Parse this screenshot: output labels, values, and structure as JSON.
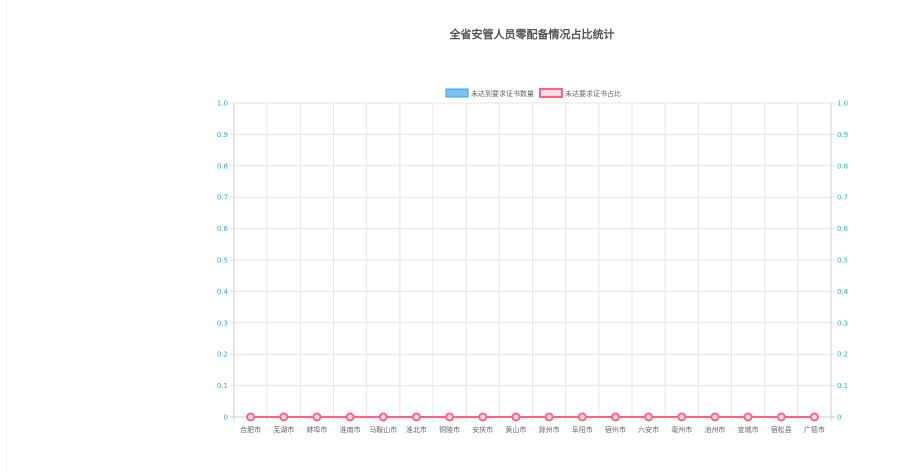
{
  "chart_data": {
    "type": "bar",
    "title": "全省安管人员零配备情况占比统计",
    "categories": [
      "合肥市",
      "芜湖市",
      "蚌埠市",
      "淮南市",
      "马鞍山市",
      "淮北市",
      "铜陵市",
      "安庆市",
      "黄山市",
      "滁州市",
      "阜阳市",
      "宿州市",
      "六安市",
      "亳州市",
      "池州市",
      "宣城市",
      "宿松县",
      "广德市"
    ],
    "series": [
      {
        "name": "未达到要求证书数量",
        "type": "bar",
        "color": "#36a2eb",
        "fill": "#7cc0f0",
        "values": [
          0,
          0,
          0,
          0,
          0,
          0,
          0,
          0,
          0,
          0,
          0,
          0,
          0,
          0,
          0,
          0,
          0,
          0
        ]
      },
      {
        "name": "未达要求证书占比",
        "type": "line",
        "color": "#ff6384",
        "fill": "#ffdde4",
        "values": [
          0,
          0,
          0,
          0,
          0,
          0,
          0,
          0,
          0,
          0,
          0,
          0,
          0,
          0,
          0,
          0,
          0,
          0
        ]
      }
    ],
    "ylim": [
      0,
      1.0
    ],
    "yticks": [
      "0",
      "0.1",
      "0.2",
      "0.3",
      "0.4",
      "0.5",
      "0.6",
      "0.7",
      "0.8",
      "0.9",
      "1.0"
    ],
    "y2lim": [
      0,
      1.0
    ],
    "y2ticks": [
      "0",
      "0.1",
      "0.2",
      "0.3",
      "0.4",
      "0.5",
      "0.6",
      "0.7",
      "0.8",
      "0.9",
      "1.0"
    ],
    "legend_position": "top",
    "grid": true,
    "colors": {
      "left_axis": "#36a2eb",
      "right_axis": "#2bbbbb",
      "grid": "#e6e6e6",
      "axis": "#cfcfcf",
      "text": "#666666",
      "title": "#555555"
    }
  }
}
